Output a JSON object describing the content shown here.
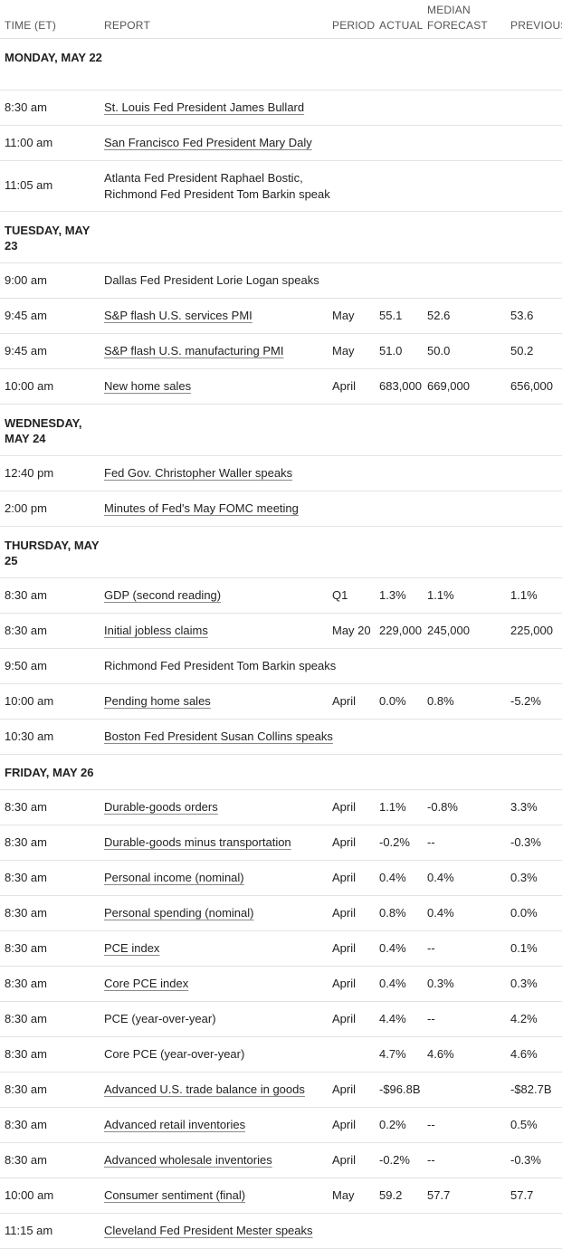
{
  "headers": {
    "time": "TIME (ET)",
    "report": "REPORT",
    "period": "PERIOD",
    "actual": "ACTUAL",
    "median": "MEDIAN",
    "forecast": "FORECAST",
    "previous": "PREVIOUS"
  },
  "days": [
    {
      "label": "MONDAY, MAY 22",
      "rows": [
        {
          "time": "8:30 am",
          "report": "St. Louis Fed President James Bullard",
          "link": true,
          "period": "",
          "actual": "",
          "forecast": "",
          "previous": ""
        },
        {
          "time": "11:00 am",
          "report": "San Francisco Fed President Mary Daly",
          "link": true,
          "period": "",
          "actual": "",
          "forecast": "",
          "previous": ""
        },
        {
          "time": "11:05 am",
          "report": "Atlanta Fed President Raphael Bostic, Richmond Fed President Tom Barkin speak",
          "link": false,
          "tall": true,
          "period": "",
          "actual": "",
          "forecast": "",
          "previous": ""
        }
      ]
    },
    {
      "label": "TUESDAY, MAY 23",
      "rows": [
        {
          "time": "9:00 am",
          "report": "Dallas Fed President Lorie Logan speaks",
          "link": false,
          "period": "",
          "actual": "",
          "forecast": "",
          "previous": ""
        },
        {
          "time": "9:45 am",
          "report": "S&P flash U.S. services PMI",
          "link": true,
          "period": "May",
          "actual": "55.1",
          "forecast": "52.6",
          "previous": "53.6"
        },
        {
          "time": "9:45 am",
          "report": "S&P flash U.S. manufacturing PMI",
          "link": true,
          "period": "May",
          "actual": "51.0",
          "forecast": "50.0",
          "previous": "50.2"
        },
        {
          "time": "10:00 am",
          "report": "New home sales",
          "link": true,
          "period": "April",
          "actual": "683,000",
          "forecast": "669,000",
          "previous": "656,000"
        }
      ]
    },
    {
      "label": "WEDNESDAY, MAY 24",
      "rows": [
        {
          "time": "12:40 pm",
          "report": "Fed Gov. Christopher Waller speaks",
          "link": true,
          "period": "",
          "actual": "",
          "forecast": "",
          "previous": ""
        },
        {
          "time": "2:00 pm",
          "report": "Minutes of Fed's May FOMC meeting",
          "link": true,
          "period": "",
          "actual": "",
          "forecast": "",
          "previous": ""
        }
      ]
    },
    {
      "label": "THURSDAY, MAY 25",
      "rows": [
        {
          "time": "8:30 am",
          "report": "GDP (second reading)",
          "link": true,
          "period": "Q1",
          "actual": "1.3%",
          "forecast": "1.1%",
          "previous": "1.1%"
        },
        {
          "time": "8:30 am",
          "report": "Initial jobless claims",
          "link": true,
          "period": "May 20",
          "actual": "229,000",
          "forecast": "245,000",
          "previous": "225,000"
        },
        {
          "time": "9:50 am",
          "report": "Richmond Fed President Tom Barkin speaks",
          "link": false,
          "period": "",
          "actual": "",
          "forecast": "",
          "previous": ""
        },
        {
          "time": "10:00 am",
          "report": "Pending home sales",
          "link": true,
          "period": "April",
          "actual": "0.0%",
          "forecast": "0.8%",
          "previous": "-5.2%"
        },
        {
          "time": "10:30 am",
          "report": "Boston Fed President Susan Collins speaks",
          "link": true,
          "period": "",
          "actual": "",
          "forecast": "",
          "previous": ""
        }
      ]
    },
    {
      "label": "FRIDAY, MAY 26",
      "single": true,
      "rows": [
        {
          "time": "8:30 am",
          "report": "Durable-goods orders",
          "link": true,
          "period": "April",
          "actual": "1.1%",
          "forecast": "-0.8%",
          "previous": "3.3%"
        },
        {
          "time": "8:30 am",
          "report": "Durable-goods minus transportation",
          "link": true,
          "period": "April",
          "actual": "-0.2%",
          "forecast": "--",
          "previous": "-0.3%"
        },
        {
          "time": "8:30 am",
          "report": "Personal income (nominal)",
          "link": true,
          "period": "April",
          "actual": "0.4%",
          "forecast": "0.4%",
          "previous": "0.3%"
        },
        {
          "time": "8:30 am",
          "report": "Personal spending (nominal)",
          "link": true,
          "period": "April",
          "actual": "0.8%",
          "forecast": "0.4%",
          "previous": "0.0%"
        },
        {
          "time": "8:30 am",
          "report": "PCE index",
          "link": true,
          "period": "April",
          "actual": "0.4%",
          "forecast": "--",
          "previous": "0.1%"
        },
        {
          "time": "8:30 am",
          "report": "Core PCE index",
          "link": true,
          "period": "April",
          "actual": "0.4%",
          "forecast": "0.3%",
          "previous": "0.3%"
        },
        {
          "time": "8:30 am",
          "report": "PCE (year-over-year)",
          "link": false,
          "period": "April",
          "actual": "4.4%",
          "forecast": "--",
          "previous": "4.2%"
        },
        {
          "time": "8:30 am",
          "report": "Core PCE (year-over-year)",
          "link": false,
          "period": "",
          "actual": "4.7%",
          "forecast": "4.6%",
          "previous": "4.6%"
        },
        {
          "time": "8:30 am",
          "report": "Advanced U.S. trade balance in goods",
          "link": true,
          "period": "April",
          "actual": "-$96.8B",
          "forecast": "",
          "previous": "-$82.7B"
        },
        {
          "time": "8:30 am",
          "report": "Advanced retail inventories",
          "link": true,
          "period": "April",
          "actual": "0.2%",
          "forecast": "--",
          "previous": "0.5%"
        },
        {
          "time": "8:30 am",
          "report": "Advanced wholesale inventories",
          "link": true,
          "period": "April",
          "actual": "-0.2%",
          "forecast": "--",
          "previous": "-0.3%"
        },
        {
          "time": "10:00 am",
          "report": "Consumer sentiment (final)",
          "link": true,
          "period": "May",
          "actual": "59.2",
          "forecast": "57.7",
          "previous": "57.7"
        },
        {
          "time": "11:15 am",
          "report": "Cleveland Fed President Mester speaks",
          "link": true,
          "period": "",
          "actual": "",
          "forecast": "",
          "previous": ""
        }
      ]
    }
  ]
}
